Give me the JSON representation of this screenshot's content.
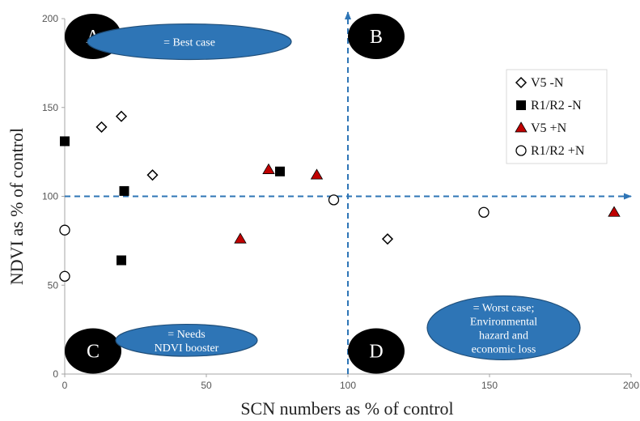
{
  "chart_data": {
    "type": "scatter",
    "title": "",
    "xlabel": "SCN numbers as % of control",
    "ylabel": "NDVI as % of control",
    "xlim": [
      0,
      200
    ],
    "ylim": [
      0,
      200
    ],
    "x_ticks": [
      "0",
      "50",
      "100",
      "150",
      "200"
    ],
    "y_ticks": [
      "0",
      "50",
      "100",
      "150",
      "200"
    ],
    "grid": false,
    "legend_position": "top-right",
    "reference_lines": {
      "x": 100,
      "y": 100,
      "color": "#2E75B6",
      "style": "dashed-arrow"
    },
    "series": [
      {
        "name": "V5 -N",
        "marker": "diamond-open",
        "color": "#000000",
        "points": [
          [
            13,
            139
          ],
          [
            20,
            145
          ],
          [
            31,
            112
          ],
          [
            114,
            76
          ]
        ]
      },
      {
        "name": "R1/R2 -N",
        "marker": "square-filled",
        "color": "#000000",
        "points": [
          [
            0,
            131
          ],
          [
            21,
            103
          ],
          [
            20,
            64
          ],
          [
            76,
            114
          ]
        ]
      },
      {
        "name": "V5 +N",
        "marker": "triangle-filled",
        "color": "#C00000",
        "points": [
          [
            62,
            76
          ],
          [
            72,
            115
          ],
          [
            89,
            112
          ],
          [
            194,
            91
          ]
        ]
      },
      {
        "name": "R1/R2 +N",
        "marker": "circle-open",
        "color": "#000000",
        "points": [
          [
            0,
            81
          ],
          [
            0,
            55
          ],
          [
            95,
            98
          ],
          [
            148,
            91
          ]
        ]
      }
    ],
    "quadrant_labels": [
      {
        "letter": "A",
        "x": 10,
        "y": 190
      },
      {
        "letter": "B",
        "x": 110,
        "y": 190
      },
      {
        "letter": "C",
        "x": 10,
        "y": 13
      },
      {
        "letter": "D",
        "x": 110,
        "y": 13
      }
    ],
    "annotations": [
      {
        "lines": [
          "= Best case"
        ],
        "x": 44,
        "y": 187,
        "rx": 36,
        "ry": 10
      },
      {
        "lines": [
          "= Needs",
          "NDVI booster"
        ],
        "x": 43,
        "y": 19,
        "rx": 25,
        "ry": 9
      },
      {
        "lines": [
          "= Worst case;",
          "Environmental",
          "hazard and",
          "economic loss"
        ],
        "x": 155,
        "y": 26,
        "rx": 27,
        "ry": 18
      }
    ]
  }
}
